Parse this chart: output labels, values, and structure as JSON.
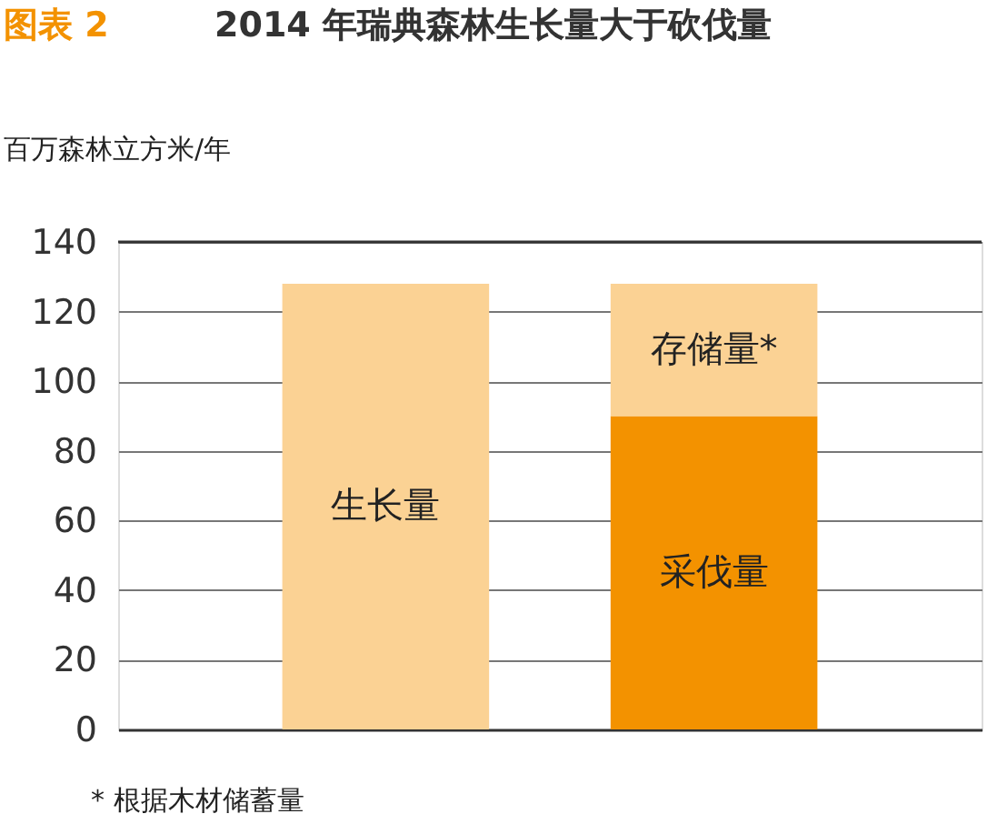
{
  "chart_data": {
    "type": "bar",
    "title": "2014 年瑞典森林生长量大于砍伐量",
    "ylabel": "百万森林立方米/年",
    "annotations": [
      "图表 2",
      "* 根据木材储蓄量"
    ],
    "categories": [
      null,
      null
    ],
    "stacked": true,
    "series": [
      {
        "name": "生长量",
        "color": "#fbd294",
        "values": [
          128,
          null
        ]
      },
      {
        "name": "采伐量",
        "color": "#f39200",
        "values": [
          null,
          90
        ]
      },
      {
        "name": "存储量*",
        "color": "#fbd294",
        "values": [
          null,
          38
        ]
      }
    ],
    "ylim": [
      0,
      140
    ],
    "yticks": [
      0,
      20,
      40,
      60,
      80,
      100,
      120,
      140
    ],
    "grid": "y",
    "tick_labels": "y"
  }
}
